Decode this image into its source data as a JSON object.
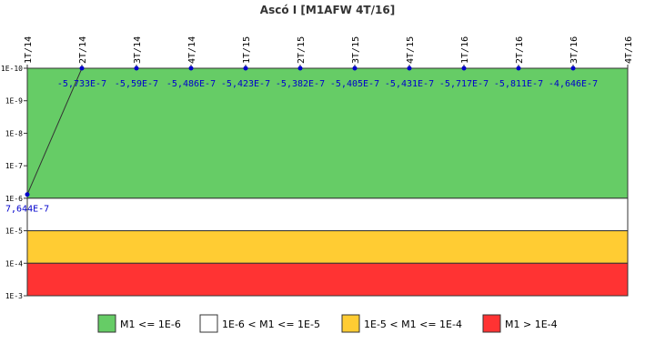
{
  "chart_data": {
    "type": "line",
    "title": "Ascó I [M1AFW 4T/16]",
    "xlabel": "",
    "ylabel": "",
    "y_scale": "log",
    "y_reversed": true,
    "ylim": [
      1e-10,
      0.001
    ],
    "y_ticks": [
      "1E-10",
      "1E-9",
      "1E-8",
      "1E-7",
      "1E-6",
      "1E-5",
      "1E-4",
      "1E-3"
    ],
    "categories": [
      "1T/14",
      "2T/14",
      "3T/14",
      "4T/14",
      "1T/15",
      "2T/15",
      "3T/15",
      "4T/15",
      "1T/16",
      "2T/16",
      "3T/16",
      "4T/16"
    ],
    "series": [
      {
        "values": [
          7.644e-07,
          -5.733e-07,
          -5.59e-07,
          -5.486e-07,
          -5.423e-07,
          -5.382e-07,
          -5.405e-07,
          -5.431e-07,
          -5.717e-07,
          -5.811e-07,
          -4.646e-07,
          null
        ],
        "labels": [
          "7,644E-7",
          "-5,733E-7",
          "-5,59E-7",
          "-5,486E-7",
          "-5,423E-7",
          "-5,382E-7",
          "-5,405E-7",
          "-5,431E-7",
          "-5,717E-7",
          "-5,811E-7",
          "-4,646E-7",
          ""
        ],
        "color": "#0000cc"
      }
    ],
    "bands": [
      {
        "label": "M1 <= 1E-6",
        "from": 1e-10,
        "to": 1e-06,
        "color": "#66cc66"
      },
      {
        "label": "1E-6 < M1 <= 1E-5",
        "from": 1e-06,
        "to": 1e-05,
        "color": "#ffffff"
      },
      {
        "label": "1E-5 < M1 <= 1E-4",
        "from": 1e-05,
        "to": 0.0001,
        "color": "#ffcc33"
      },
      {
        "label": "M1 > 1E-4",
        "from": 0.0001,
        "to": 0.001,
        "color": "#ff3333"
      }
    ],
    "legend_position": "bottom",
    "grid": false
  }
}
